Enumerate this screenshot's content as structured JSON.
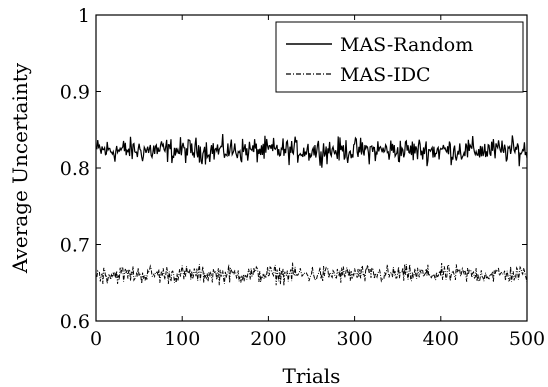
{
  "chart_data": {
    "type": "line",
    "xlabel": "Trials",
    "ylabel": "Average Uncertainty",
    "xlim": [
      0,
      500
    ],
    "ylim": [
      0.6,
      1.0
    ],
    "xticks": [
      0,
      100,
      200,
      300,
      400,
      500
    ],
    "yticks": [
      0.6,
      0.7,
      0.8,
      0.9,
      1.0
    ],
    "xtick_labels": [
      "0",
      "100",
      "200",
      "300",
      "400",
      "500"
    ],
    "ytick_labels": [
      "0.6",
      "0.7",
      "0.8",
      "0.9",
      "1"
    ],
    "grid": false,
    "legend_position": "top-right",
    "series": [
      {
        "name": "MAS-Random",
        "style": "solid",
        "color": "#000000",
        "mean": 0.823,
        "x": [
          1,
          500
        ],
        "y_range": [
          0.785,
          0.862
        ]
      },
      {
        "name": "MAS-IDC",
        "style": "dash-dot",
        "color": "#000000",
        "mean": 0.661,
        "x": [
          1,
          500
        ],
        "y_range": [
          0.628,
          0.685
        ]
      }
    ]
  }
}
